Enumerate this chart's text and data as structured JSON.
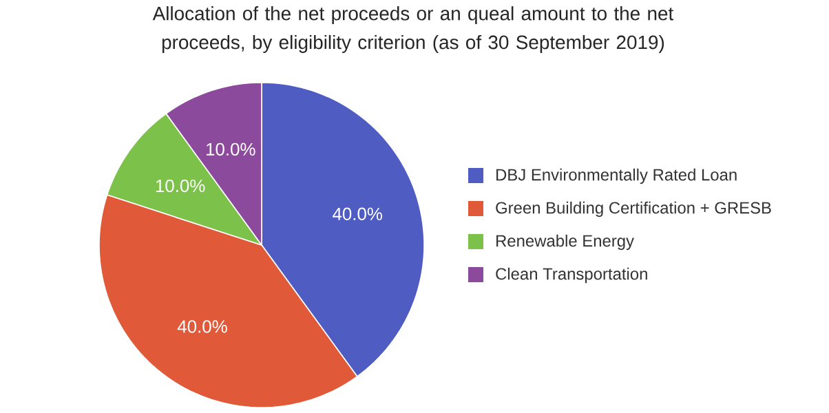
{
  "chart_data": {
    "type": "pie",
    "title": "Allocation of the net proceeds or an queal amount to the net proceeds, by eligibility criterion (as of 30 September 2019)",
    "categories": [
      "DBJ Environmentally Rated Loan",
      "Green Building Certification + GRESB",
      "Renewable Energy",
      "Clean Transportation"
    ],
    "values": [
      40,
      40,
      10,
      10
    ],
    "value_labels": [
      "40.0%",
      "40.0%",
      "10.0%",
      "10.0%"
    ],
    "colors": [
      "#4f5cc2",
      "#e05a3a",
      "#7cc14a",
      "#8c4a9c"
    ],
    "legend": "right"
  }
}
